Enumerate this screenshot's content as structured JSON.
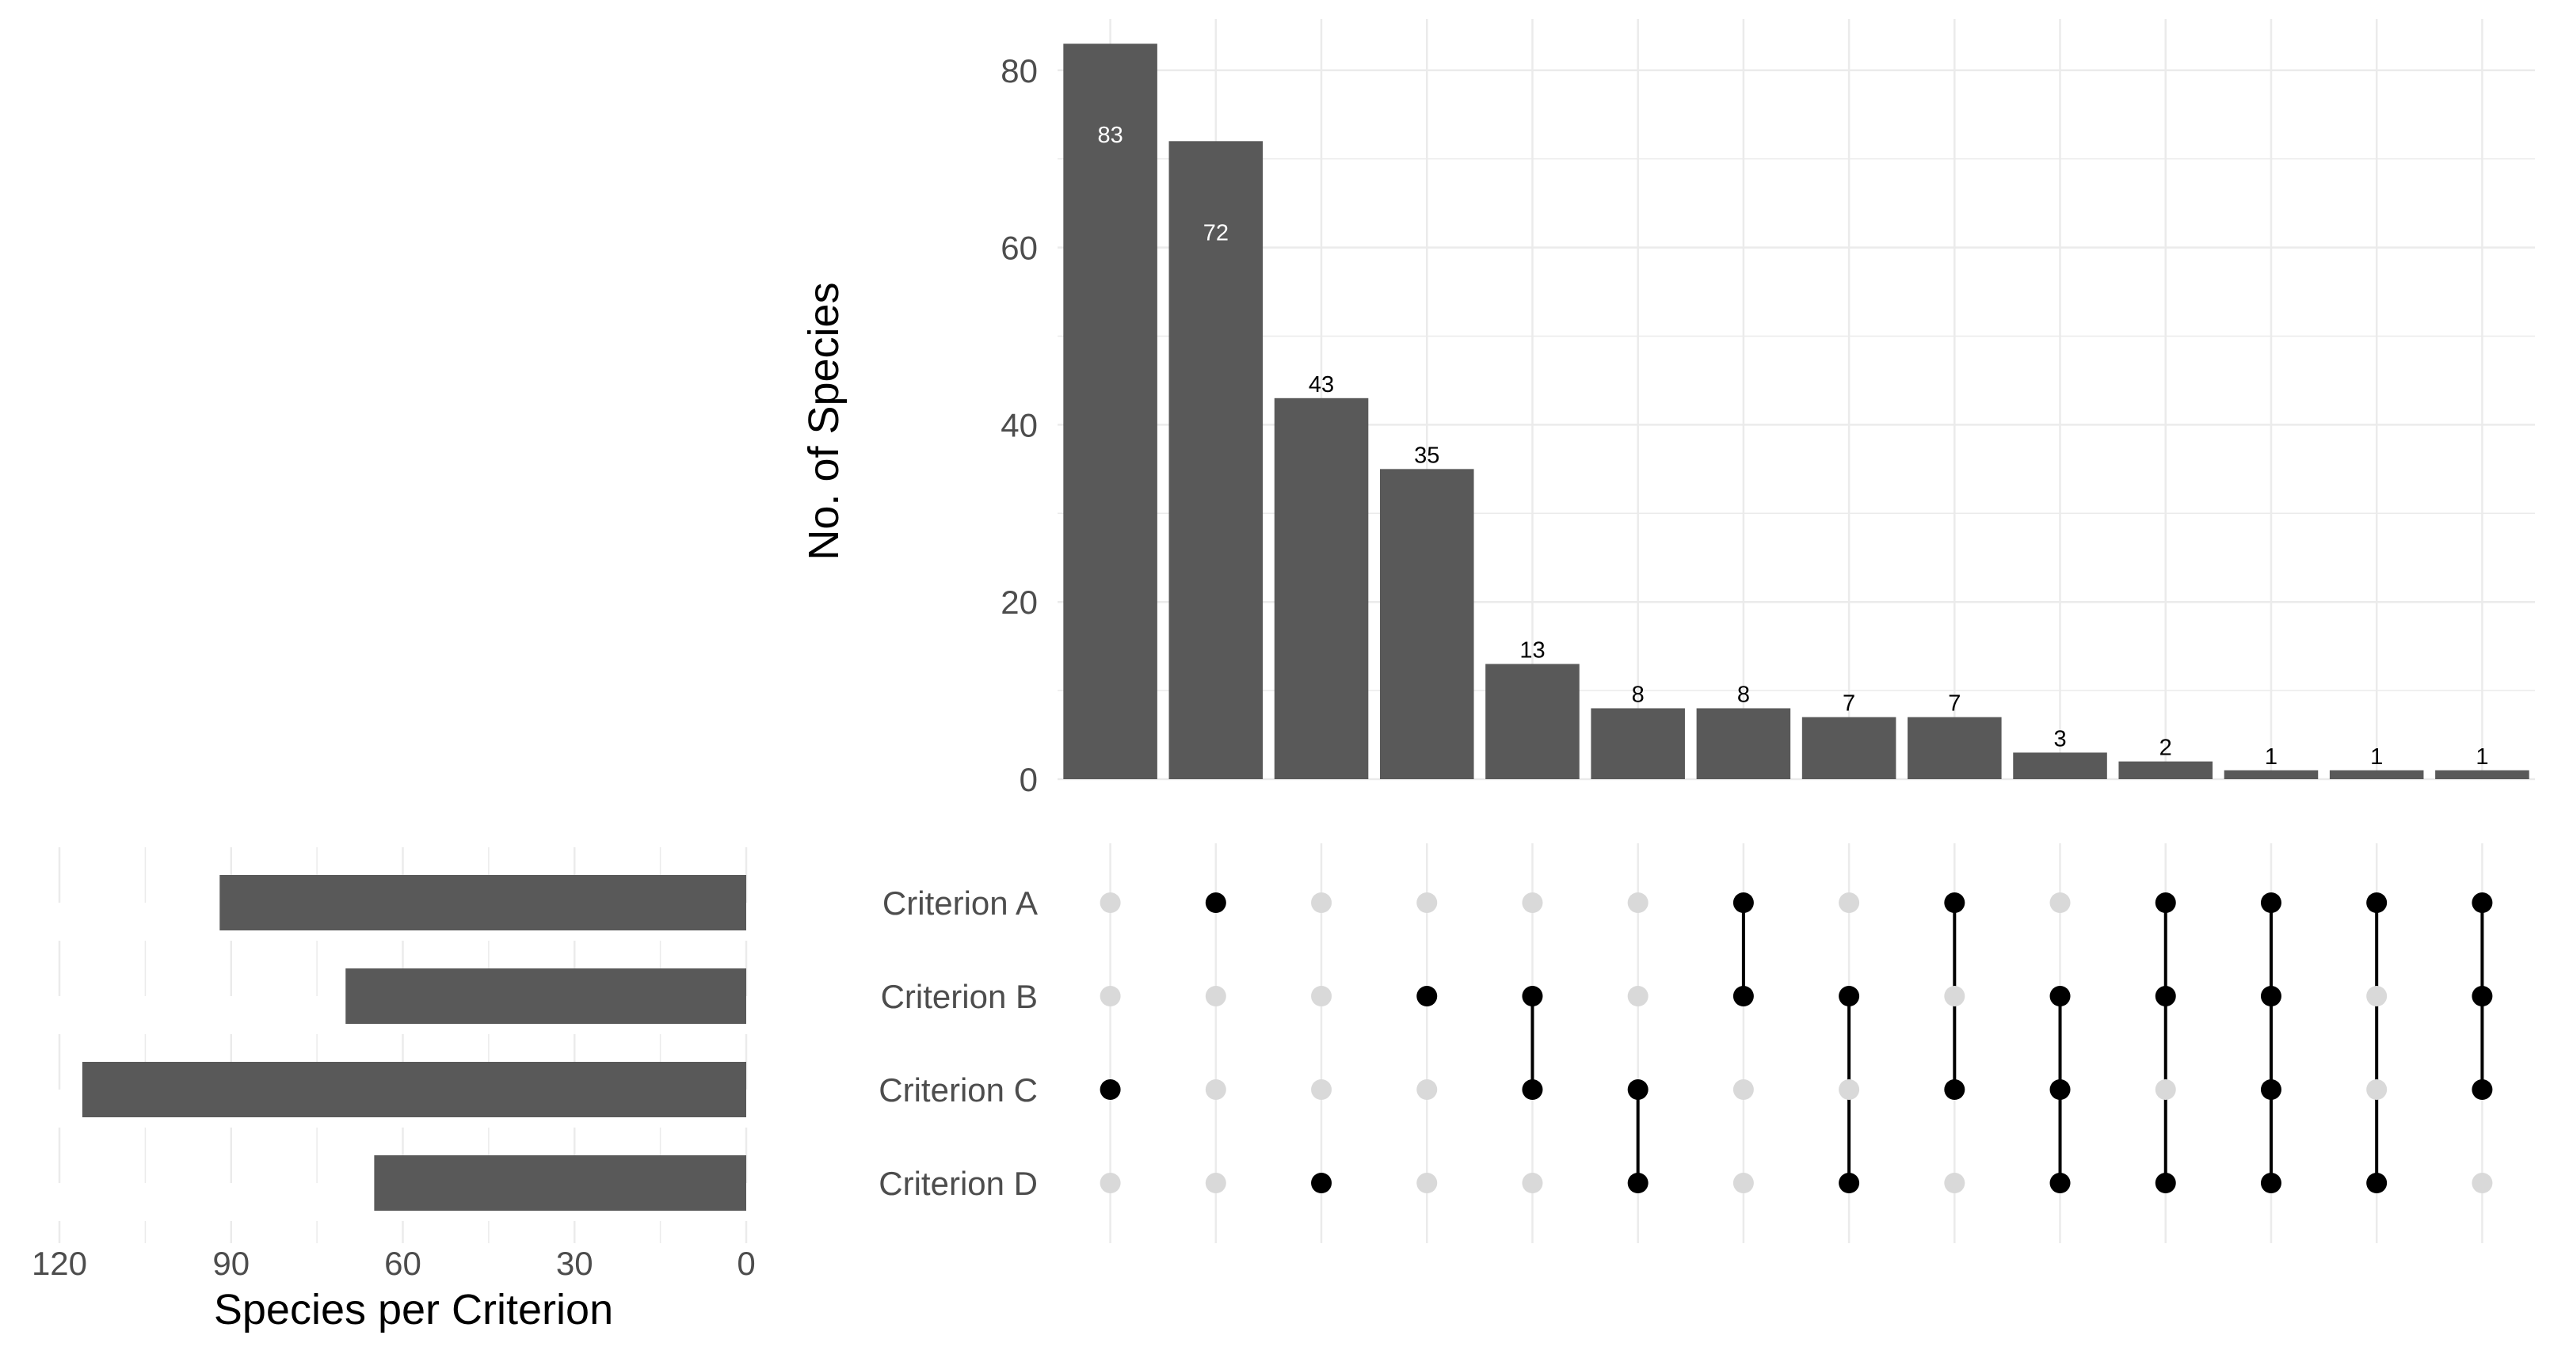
{
  "chart_data": {
    "type": "upset",
    "intersections": {
      "type": "bar",
      "ylabel": "No. of Species",
      "ylim": [
        0,
        84
      ],
      "yticks": [
        0,
        20,
        40,
        60,
        80
      ],
      "values": [
        83,
        72,
        43,
        35,
        13,
        8,
        8,
        7,
        7,
        3,
        2,
        1,
        1,
        1
      ],
      "membership": [
        [
          "Criterion C"
        ],
        [
          "Criterion A"
        ],
        [
          "Criterion D"
        ],
        [
          "Criterion B"
        ],
        [
          "Criterion B",
          "Criterion C"
        ],
        [
          "Criterion C",
          "Criterion D"
        ],
        [
          "Criterion A",
          "Criterion B"
        ],
        [
          "Criterion B",
          "Criterion D"
        ],
        [
          "Criterion A",
          "Criterion C"
        ],
        [
          "Criterion B",
          "Criterion C",
          "Criterion D"
        ],
        [
          "Criterion A",
          "Criterion B",
          "Criterion D"
        ],
        [
          "Criterion A",
          "Criterion B",
          "Criterion C",
          "Criterion D"
        ],
        [
          "Criterion A",
          "Criterion D"
        ],
        [
          "Criterion A",
          "Criterion B",
          "Criterion C"
        ]
      ],
      "bar_color": "#595959"
    },
    "sets": {
      "type": "bar",
      "orientation": "horizontal-reversed",
      "names": [
        "Criterion A",
        "Criterion B",
        "Criterion C",
        "Criterion D"
      ],
      "values": [
        92,
        70,
        116,
        65
      ],
      "xlabel": "Species per Criterion",
      "xlim": [
        0,
        120
      ],
      "xticks": [
        120,
        90,
        60,
        30,
        0
      ],
      "bar_color": "#595959"
    },
    "colors": {
      "dot_active": "#000000",
      "dot_inactive": "#d9d9d9",
      "grid": "#ebebeb"
    }
  }
}
